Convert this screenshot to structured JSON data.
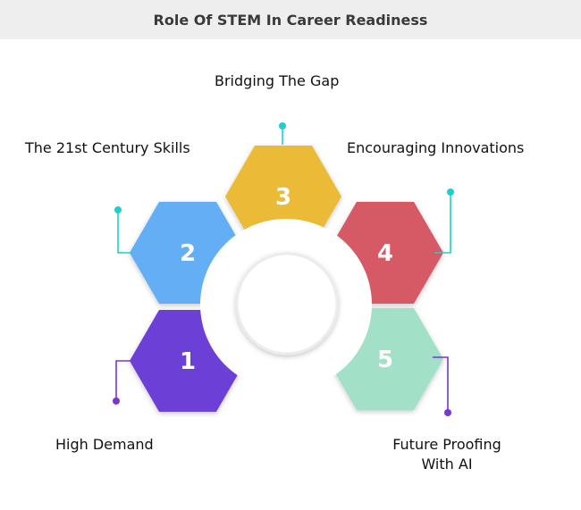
{
  "title": "Role Of STEM In Career Readiness",
  "steps": [
    {
      "number": "1",
      "label": "High Demand",
      "color": "#6c41d6",
      "connector_color": "#7a35d2"
    },
    {
      "number": "2",
      "label": "The 21st Century Skills",
      "color": "#63aef4",
      "connector_color": "#1fcfcf"
    },
    {
      "number": "3",
      "label": "Bridging The Gap",
      "color": "#ebbb37",
      "connector_color": "#1fcfcf"
    },
    {
      "number": "4",
      "label": "Encouraging Innovations",
      "color": "#d55a66",
      "connector_color": "#1fcfcf"
    },
    {
      "number": "5",
      "label": "Future Proofing With AI",
      "label_lines": [
        "Future Proofing",
        "With AI"
      ],
      "color": "#a2e1c8",
      "connector_color": "#7a35d2"
    }
  ]
}
